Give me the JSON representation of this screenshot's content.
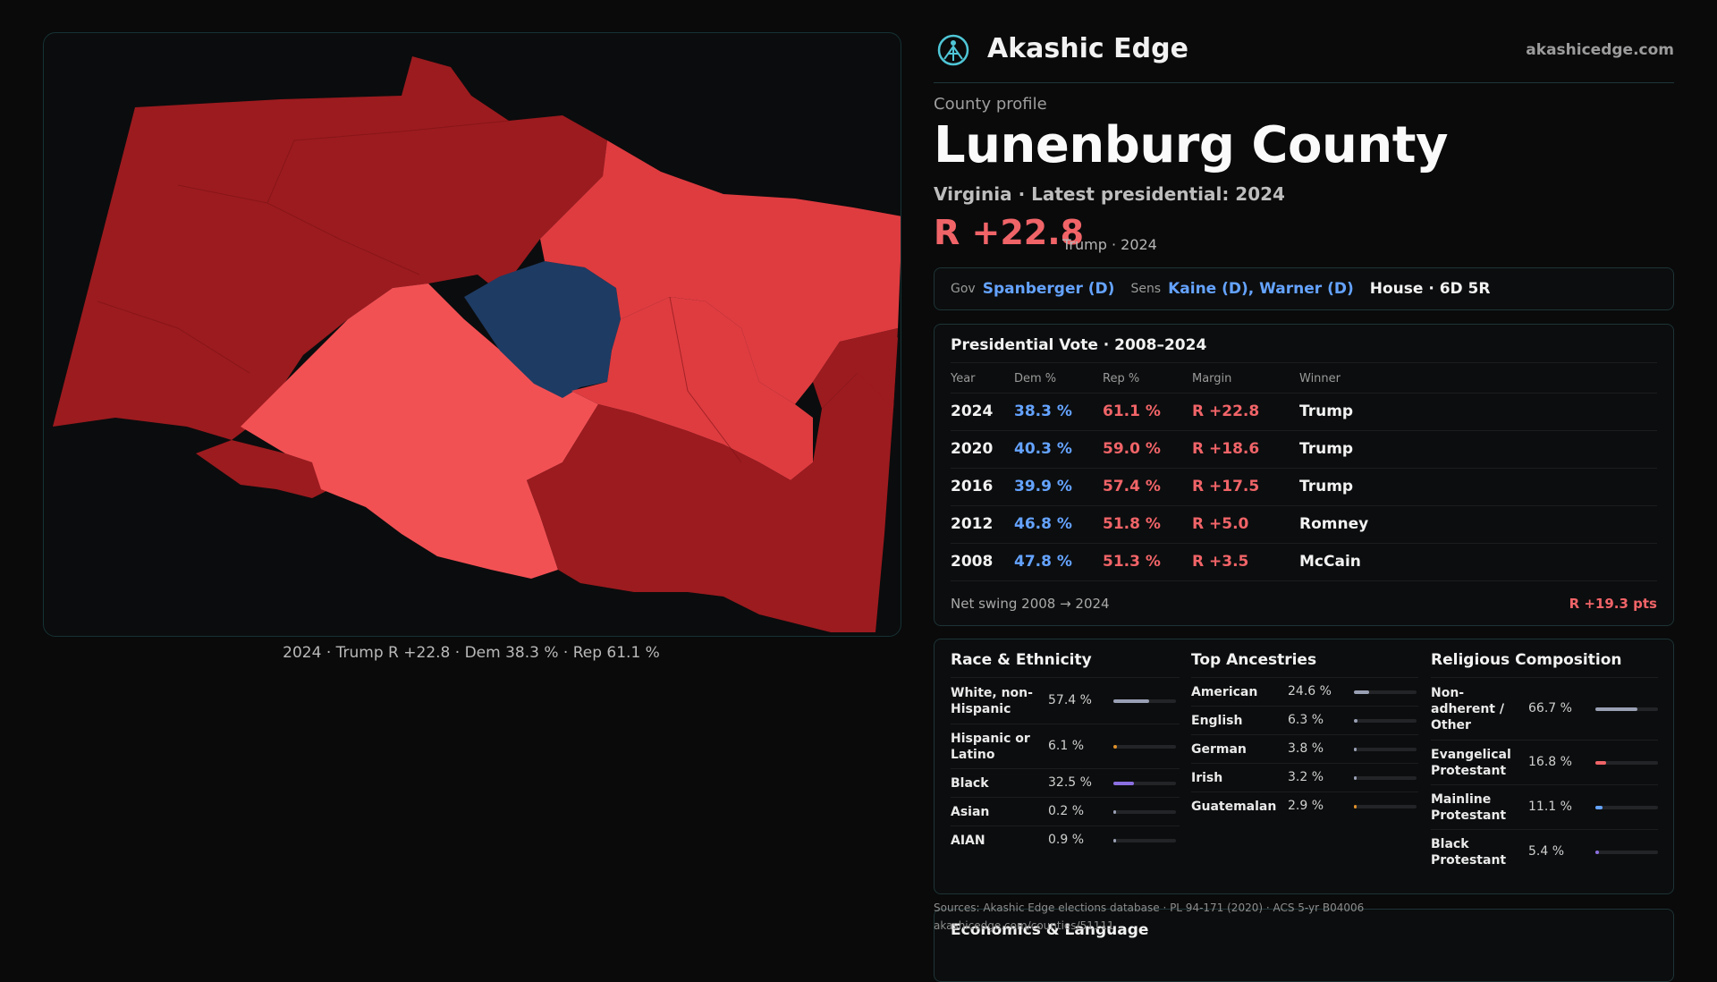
{
  "map": {
    "caption": "2024 · Trump R +22.8 · Dem 38.3 % · Rep 61.1 %",
    "colors": {
      "strong_rep": "#9c1b1f",
      "mid_rep": "#df3c40",
      "light_rep": "#f25154",
      "dem": "#1e3b63"
    }
  },
  "brand": {
    "name": "Akashic Edge",
    "url": "akashicedge.com",
    "logo_icon": "compass-figure-icon"
  },
  "profile": {
    "eyebrow": "County profile",
    "title": "Lunenburg County",
    "subtitle": "Virginia · Latest presidential: 2024",
    "margin": "R +22.8",
    "margin_note": "Trump · 2024"
  },
  "officials": {
    "gov_key": "Gov",
    "gov": "Spanberger (D)",
    "sens_key": "Sens",
    "sens": "Kaine (D), Warner (D)",
    "house": "House · 6D 5R"
  },
  "presidential": {
    "title": "Presidential Vote · 2008–2024",
    "headers": {
      "year": "Year",
      "dem": "Dem %",
      "rep": "Rep %",
      "margin": "Margin",
      "winner": "Winner"
    },
    "rows": [
      {
        "year": "2024",
        "dem": "38.3 %",
        "rep": "61.1 %",
        "margin": "R +22.8",
        "winner": "Trump"
      },
      {
        "year": "2020",
        "dem": "40.3 %",
        "rep": "59.0 %",
        "margin": "R +18.6",
        "winner": "Trump"
      },
      {
        "year": "2016",
        "dem": "39.9 %",
        "rep": "57.4 %",
        "margin": "R +17.5",
        "winner": "Trump"
      },
      {
        "year": "2012",
        "dem": "46.8 %",
        "rep": "51.8 %",
        "margin": "R +5.0",
        "winner": "Romney"
      },
      {
        "year": "2008",
        "dem": "47.8 %",
        "rep": "51.3 %",
        "margin": "R +3.5",
        "winner": "McCain"
      }
    ],
    "swing_label": "Net swing 2008 → 2024",
    "swing_value": "R +19.3 pts"
  },
  "race": {
    "title": "Race & Ethnicity",
    "items": [
      {
        "label": "White, non-Hispanic",
        "pct": "57.4 %",
        "value": 57.4,
        "color": "#9aa0b4"
      },
      {
        "label": "Hispanic or Latino",
        "pct": "6.1 %",
        "value": 6.1,
        "color": "#e0902a"
      },
      {
        "label": "Black",
        "pct": "32.5 %",
        "value": 32.5,
        "color": "#8b6fe0"
      },
      {
        "label": "Asian",
        "pct": "0.2 %",
        "value": 0.2,
        "color": "#9aa0b4"
      },
      {
        "label": "AIAN",
        "pct": "0.9 %",
        "value": 0.9,
        "color": "#9aa0b4"
      }
    ]
  },
  "ancestry": {
    "title": "Top Ancestries",
    "items": [
      {
        "label": "American",
        "pct": "24.6 %",
        "value": 24.6,
        "color": "#9aa0b4"
      },
      {
        "label": "English",
        "pct": "6.3 %",
        "value": 6.3,
        "color": "#9aa0b4"
      },
      {
        "label": "German",
        "pct": "3.8 %",
        "value": 3.8,
        "color": "#9aa0b4"
      },
      {
        "label": "Irish",
        "pct": "3.2 %",
        "value": 3.2,
        "color": "#9aa0b4"
      },
      {
        "label": "Guatemalan",
        "pct": "2.9 %",
        "value": 2.9,
        "color": "#e0902a"
      }
    ]
  },
  "religion": {
    "title": "Religious Composition",
    "items": [
      {
        "label": "Non-adherent / Other",
        "pct": "66.7 %",
        "value": 66.7,
        "color": "#9aa0b4"
      },
      {
        "label": "Evangelical Protestant",
        "pct": "16.8 %",
        "value": 16.8,
        "color": "#f06468"
      },
      {
        "label": "Mainline Protestant",
        "pct": "11.1 %",
        "value": 11.1,
        "color": "#64a3ff"
      },
      {
        "label": "Black Protestant",
        "pct": "5.4 %",
        "value": 5.4,
        "color": "#8b6fe0"
      }
    ]
  },
  "sources": {
    "line1": "Sources: Akashic Edge elections database · PL 94-171 (2020) · ACS 5-yr B04006",
    "line2": "akashicedge.com/counties/51111"
  },
  "economics": {
    "title": "Economics & Language"
  }
}
